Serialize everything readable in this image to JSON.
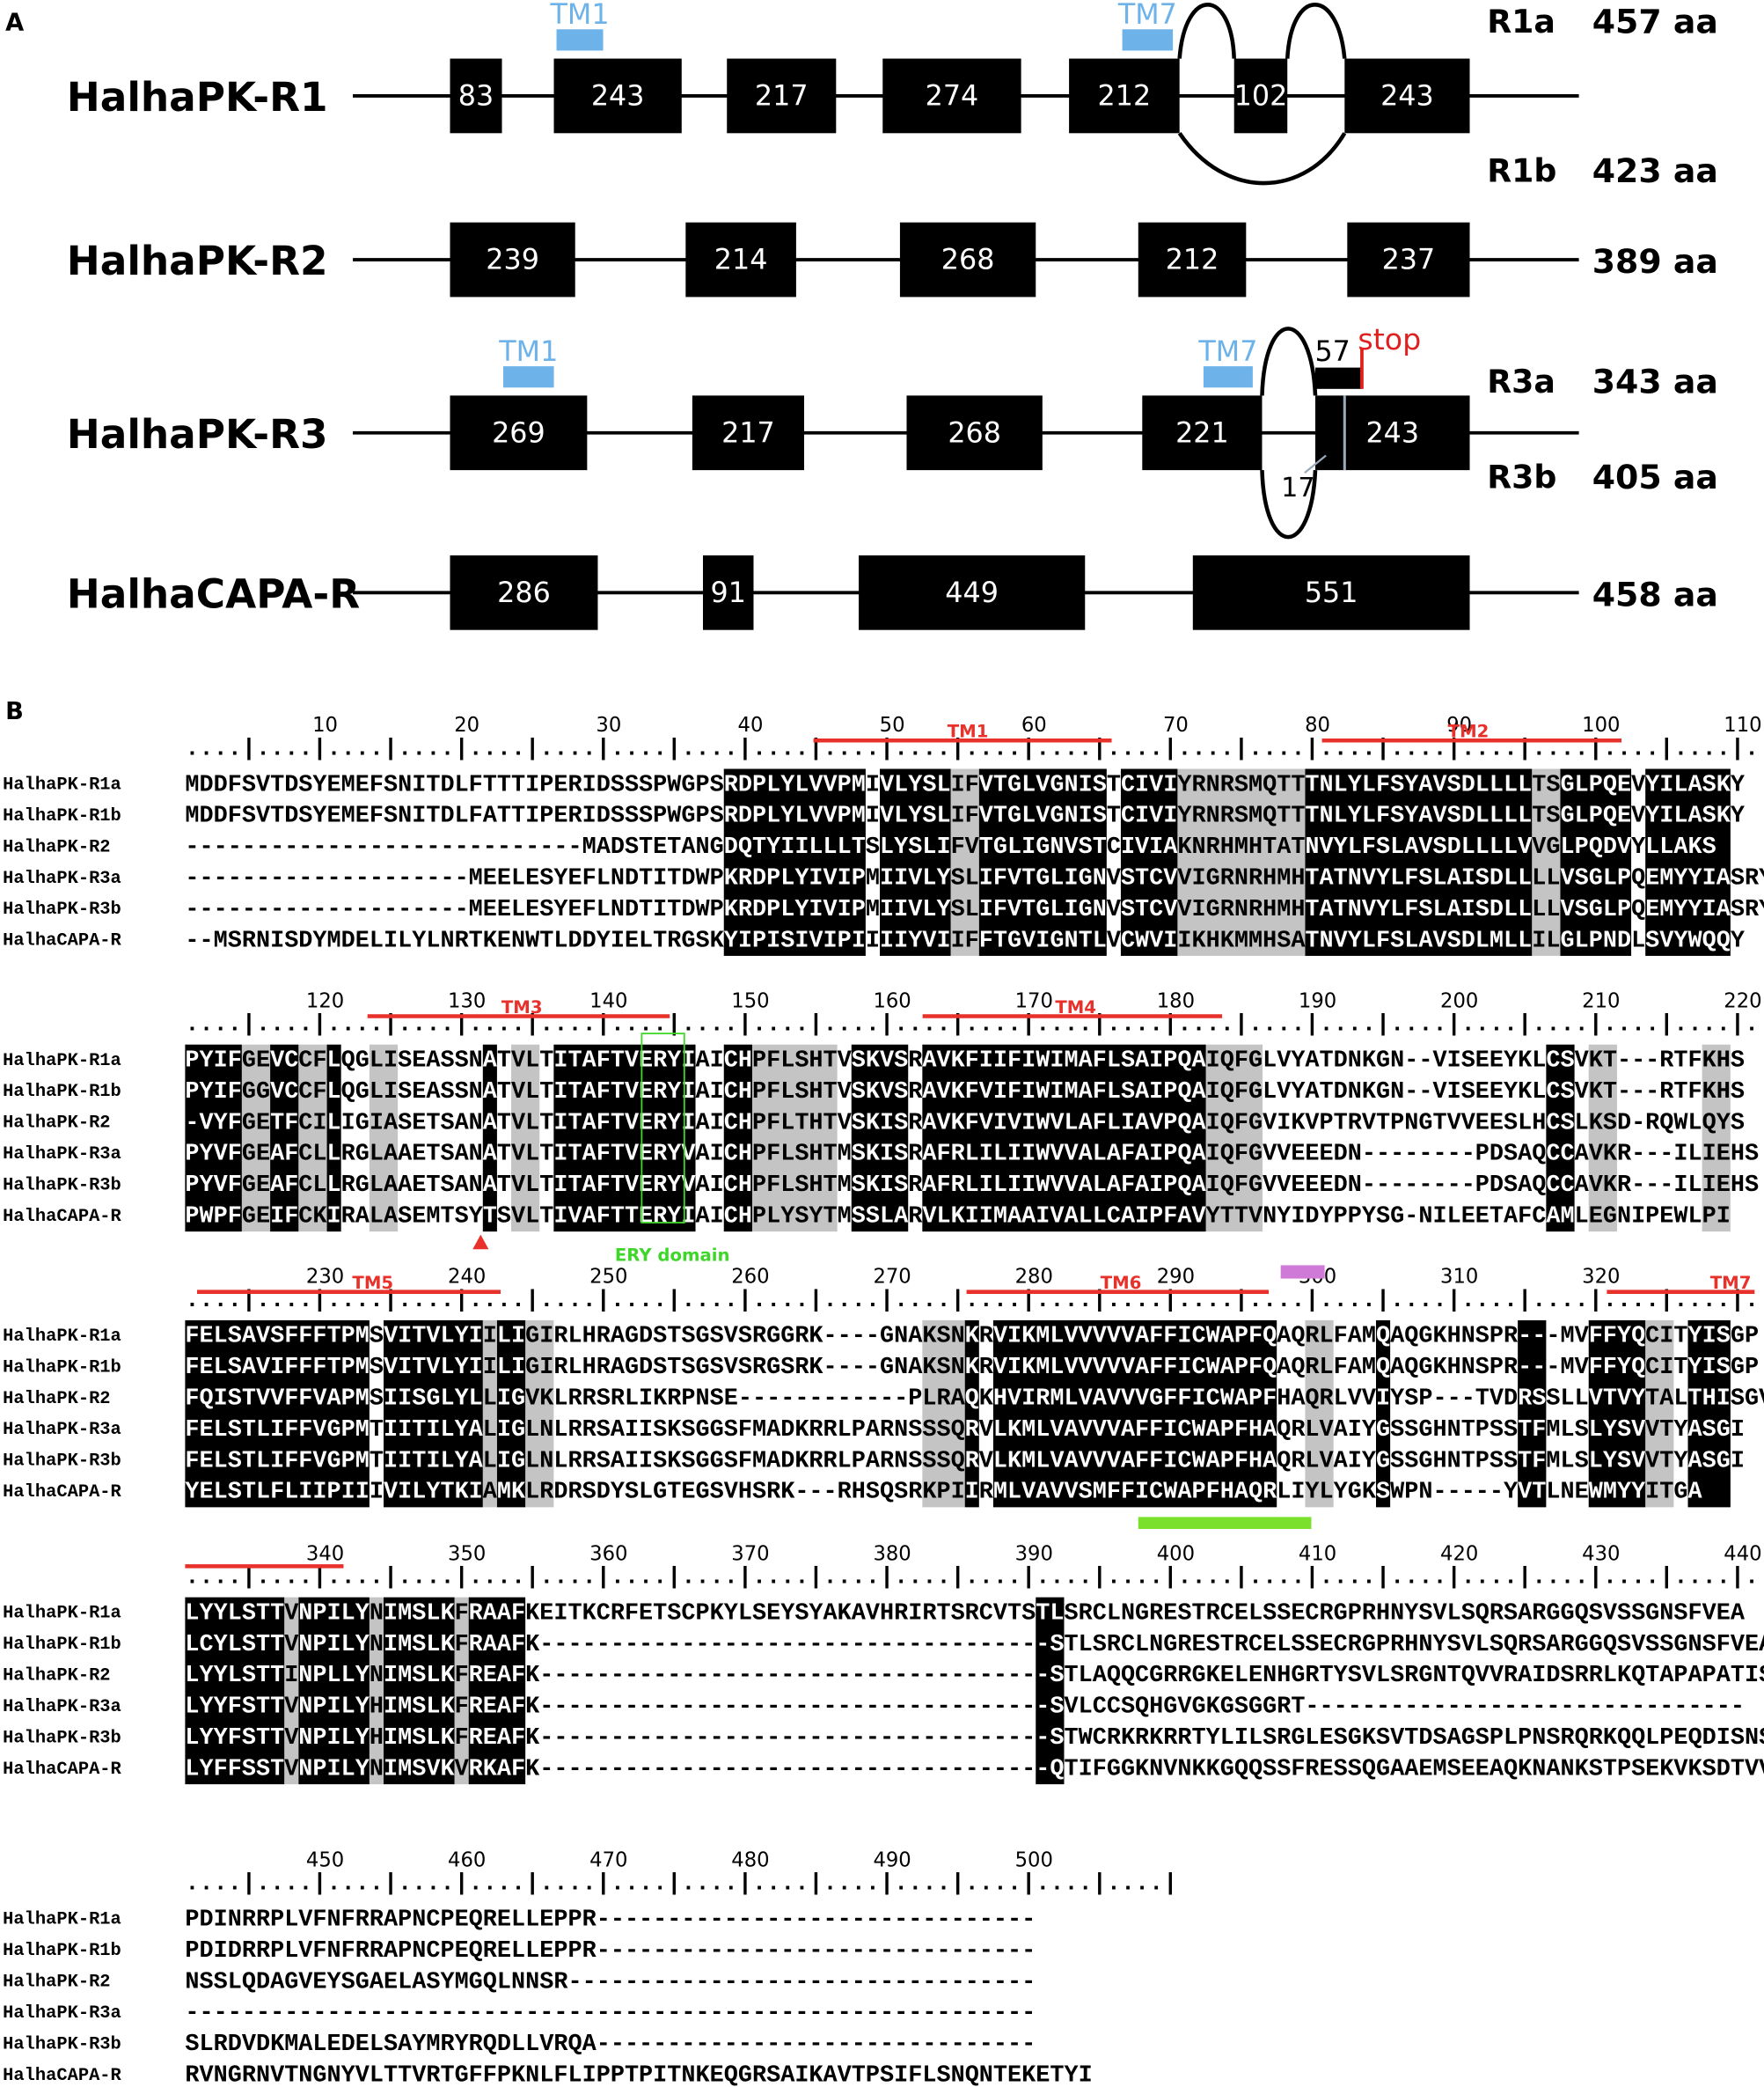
{
  "panel_a": {
    "label": "A",
    "genes": [
      {
        "name": "HalhaPK-R1",
        "exons": [
          "83",
          "243",
          "217",
          "274",
          "212",
          "102",
          "243"
        ],
        "tms": [
          "TM1",
          "TM7"
        ],
        "isoforms": [
          {
            "name": "R1a",
            "length": "457 aa"
          },
          {
            "name": "R1b",
            "length": "423 aa"
          }
        ]
      },
      {
        "name": "HalhaPK-R2",
        "exons": [
          "239",
          "214",
          "268",
          "212",
          "237"
        ],
        "tms": [],
        "isoforms": [
          {
            "length": "389 aa"
          }
        ]
      },
      {
        "name": "HalhaPK-R3",
        "exons": [
          "269",
          "217",
          "268",
          "221",
          "243"
        ],
        "tms": [
          "TM1",
          "TM7"
        ],
        "isoforms": [
          {
            "name": "R3a",
            "length": "343 aa"
          },
          {
            "name": "R3b",
            "length": "405 aa"
          }
        ],
        "alt_exon": "57",
        "stop": "stop",
        "skipped": "17"
      },
      {
        "name": "HalhaCAPA-R",
        "exons": [
          "286",
          "91",
          "449",
          "551"
        ],
        "tms": [],
        "isoforms": [
          {
            "length": "458 aa"
          }
        ]
      }
    ]
  },
  "panel_b": {
    "label": "B",
    "ruler_unit": "....|....|",
    "names": [
      "HalhaPK-R1a",
      "HalhaPK-R1b",
      "HalhaPK-R2",
      "HalhaPK-R3a",
      "HalhaPK-R3b",
      "HalhaCAPA-R"
    ],
    "annotations": [
      "TM1",
      "TM2",
      "TM3",
      "TM4",
      "ERY domain",
      "TM5",
      "TM6",
      "TM7"
    ],
    "blocks": [
      {
        "positions": [
          10,
          20,
          30,
          40,
          50,
          60,
          70,
          80,
          90,
          100,
          110
        ],
        "sequences": [
          "MDDFSVTDSYEMEFSNITDLFTTTIPERIDSSSPWGPSRDPLYLVVPMIVLYSLIFVTGLVGNISTCIVIYRNRSMQTTTNLYLFSYAVSDLLLLTSGLPQEVYILASKY",
          "MDDFSVTDSYEMEFSNITDLFATTIPERIDSSSPWGPSRDPLYLVVPMIVLYSLIFVTGLVGNISTCIVIYRNRSMQTTTNLYLFSYAVSDLLLLTSGLPQEVYILASKY",
          "----------------------------MADSTETANGDQTYIILLLTSLYSLIFVTGLIGNVSTCIVIAKNRHMHTATNVYLFSLAVSDLLLLVVGLPQDVYLLAKS",
          "--------------------MEELESYEFLNDTITDWPKRDPLYIVIPMIIVLYSLIFVTGLIGNVSTCVVIGRNRHMHTATNVYLFSLAISDLLLLVSGLPQEMYYIASRY",
          "--------------------MEELESYEFLNDTITDWPKRDPLYIVIPMIIVLYSLIFVTGLIGNVSTCVVIGRNRHMHTATNVYLFSLAISDLLLLVSGLPQEMYYIASRY",
          "--MSRNISDYMDELILYLNRTKENWTLDDYIELTRGSKYIPISIVIPIIIIYVIIFFTGVIGNTLVCWVIIKHKMMHSATNVYLFSLAVSDLMLLILGLPNDLSVYWQQY"
        ]
      },
      {
        "positions": [
          120,
          130,
          140,
          150,
          160,
          170,
          180,
          190,
          200,
          210,
          220
        ],
        "sequences": [
          "PYIFGEVCCFLQGLISEASSNATVLTITAFTVERYIAICHPFLSHTVSKVSRAVKFIIFIWIMAFLSAIPQAIQFGLVYATDNKGN--VISEEYKLCSVKT---RTFKHS",
          "PYIFGGVCCFLQGLISEASSNATVLTITAFTVERYIAICHPFLSHTVSKVSRAVKFVIFIWIMAFLSAIPQAIQFGLVYATDNKGN--VISEEYKLCSVKT---RTFKHS",
          "-VYFGETFCILIGIASETSANATVLTITAFTVERYIAICHPFLTHTVSKISRAVKFVIVIWVLAFLIAVPQAIQFGVIKVPTRVTPNGTVVEESLHCSLKSD-RQWLQYS",
          "PYVFGEAFCLLRGLAAETSANATVLTITAFTVERYVAICHPFLSHTMSKISRAFRLILIIWVVALAFAIPQAIQFGVVEEEDN--------PDSAQCCAVKR---ILIEHS",
          "PYVFGEAFCLLRGLAAETSANATVLTITAFTVERYVAICHPFLSHTMSKISRAFRLILIIWVVALAFAIPQAIQFGVVEEEDN--------PDSAQCCAVKR---ILIEHS",
          "PWPFGEIFCKIRALASEMTSYTSVLTIVAFTTERYIAICHPLYSYTMSSLARVLKIIMAAIVALLCAIPFAVYTTVNYIDYPPYSG-NILEETAFCAMLEGNIPEWLPI"
        ]
      },
      {
        "positions": [
          230,
          240,
          250,
          260,
          270,
          280,
          290,
          300,
          310,
          320
        ],
        "sequences": [
          "FELSAVSFFFTPMSVITVLYIILIGIRLHRAGDSTSGSVSRGGRK----GNAKSNKRVIKMLVVVVVAFFICWAPFQAQRLFAMQAQGKHNSPR---MVFFYQCITYISGP",
          "FELSAVIFFFTPMSVITVLYIILIGIRLHRAGDSTSGSVSRGSRK----GNAKSNKRVIKMLVVVVVAFFICWAPFQAQRLFAMQAQGKHNSPR---MVFFYQCITYISGP",
          "FQISTVVFFVAPMSIISGLYLLIGVKLRRSRLIKRPNSE------------PLRAQKHVIRMLVAVVVGFFICWAPFHAQRLVVIYSP---TVDRSSLLVTVYTALTHISGV",
          "FELSTLIFFVGPMTIITILYALIGLNLRRSAIISKSGGSFMADKRRLPARNSSSQRVLKMLVAVVVAFFICWAPFHAQRLVAIYGSSGHNTPSSTFMLSLYSVVTYASGI",
          "FELSTLIFFVGPMTIITILYALIGLNLRRSAIISKSGGSFMADKRRLPARNSSSQRVLKMLVAVVVAFFICWAPFHAQRLVAIYGSSGHNTPSSTFMLSLYSVVTYASGI",
          "YELSTLFLIIPIIIVILYTKIAMKLRDRSDYSLGTEGSVHSRK---RHSQSRKPIIRMLVAVVSMFFICWAPFHAQRLIYLYGKSWPN-----YVTLNEWMYYITGA"
        ]
      },
      {
        "positions": [
          340,
          350,
          360,
          370,
          380,
          390,
          400,
          410,
          420,
          430,
          440
        ],
        "sequences": [
          "LYYLSTTVNPILYNIMSLKFRAAFKEITKCRFETSCPKYLSEYSYAKAVHRIRTSRCVTSTLSRCLNGRESTRCELSSECRGPRHNYSVLSQRSARGGQSVSSGNSFVEA",
          "LCYLSTTVNPILYNIMSLKFRAAFK------------------------------------STLSRCLNGRESTRCELSSECRGPRHNYSVLSQRSARGGQSVSSGNSFVEA",
          "LYYLSTTINPLLYNIMSLKFREAFK------------------------------------STLAQQCGRRGKELENHGRTYSVLSRGNTQVVRAIDSRRLKQTAPAPATIS",
          "LYYFSTTVNPILYHIMSLKFREAFK------------------------------------SVLCCSQHGVGKGSGGRT-------------------------------",
          "LYYFSTTVNPILYHIMSLKFREAFK------------------------------------STWCRKRKRRTYLILSRGLESGKSVTDSAGSPLPNSRQRKQQLPEQDISNS",
          "LYFFSSTVNPILYNIMSVKVRKAFK------------------------------------QTIFGGKNVNKKGQQSSFRESSQGAAEMSEEAQKNANKSTPSEKVKSDTVV"
        ]
      },
      {
        "positions": [
          450,
          460,
          470,
          480,
          490,
          500
        ],
        "sequences": [
          "PDINRRPLVFNFRRAPNCPEQRELLEPPR-------------------------------",
          "PDIDRRPLVFNFRRAPNCPEQRELLEPPR-------------------------------",
          "NSSLQDAGVEYSGAELASYMGQLNNSR---------------------------------",
          "------------------------------------------------------------",
          "SLRDVDKMALEDELSAYMRYRQDLLVRQA-------------------------------",
          "RVNGRNVTNGNYVLTTVRTGFFPKNLFLIPPTPITNKEQGRSAIKAVTPSIFLSNQNTEKETYI"
        ]
      }
    ]
  }
}
